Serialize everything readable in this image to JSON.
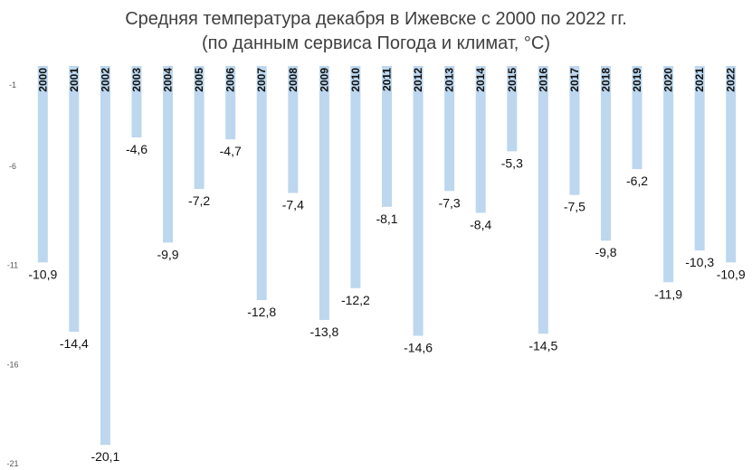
{
  "chart_data": {
    "type": "bar",
    "title": "Средняя температура декабря в Ижевске с 2000 по 2022 гг.",
    "subtitle": "(по данным сервиса Погода и климат, °С)",
    "xlabel": "",
    "ylabel": "",
    "categories": [
      "2000",
      "2001",
      "2002",
      "2003",
      "2004",
      "2005",
      "2006",
      "2007",
      "2008",
      "2009",
      "2010",
      "2011",
      "2012",
      "2013",
      "2014",
      "2015",
      "2016",
      "2017",
      "2018",
      "2019",
      "2020",
      "2021",
      "2022"
    ],
    "values": [
      -10.9,
      -14.4,
      -20.1,
      -4.6,
      -9.9,
      -7.2,
      -4.7,
      -12.8,
      -7.4,
      -13.8,
      -12.2,
      -8.1,
      -14.6,
      -7.3,
      -8.4,
      -5.3,
      -14.5,
      -7.5,
      -9.8,
      -6.2,
      -11.9,
      -10.3,
      -10.9
    ],
    "value_labels": [
      "-10,9",
      "-14,4",
      "-20,1",
      "-4,6",
      "-9,9",
      "-7,2",
      "-4,7",
      "-12,8",
      "-7,4",
      "-13,8",
      "-12,2",
      "-8,1",
      "-14,6",
      "-7,3",
      "-8,4",
      "-5,3",
      "-14,5",
      "-7,5",
      "-9,8",
      "-6,2",
      "-11,9",
      "-10,3",
      "-10,9"
    ],
    "ylim": [
      -21,
      -1
    ],
    "yticks": [
      -1,
      -6,
      -11,
      -16,
      -21
    ],
    "grid": false,
    "legend": "none",
    "bar_color": "#bdd7ee",
    "label_placement": "below bar end"
  }
}
